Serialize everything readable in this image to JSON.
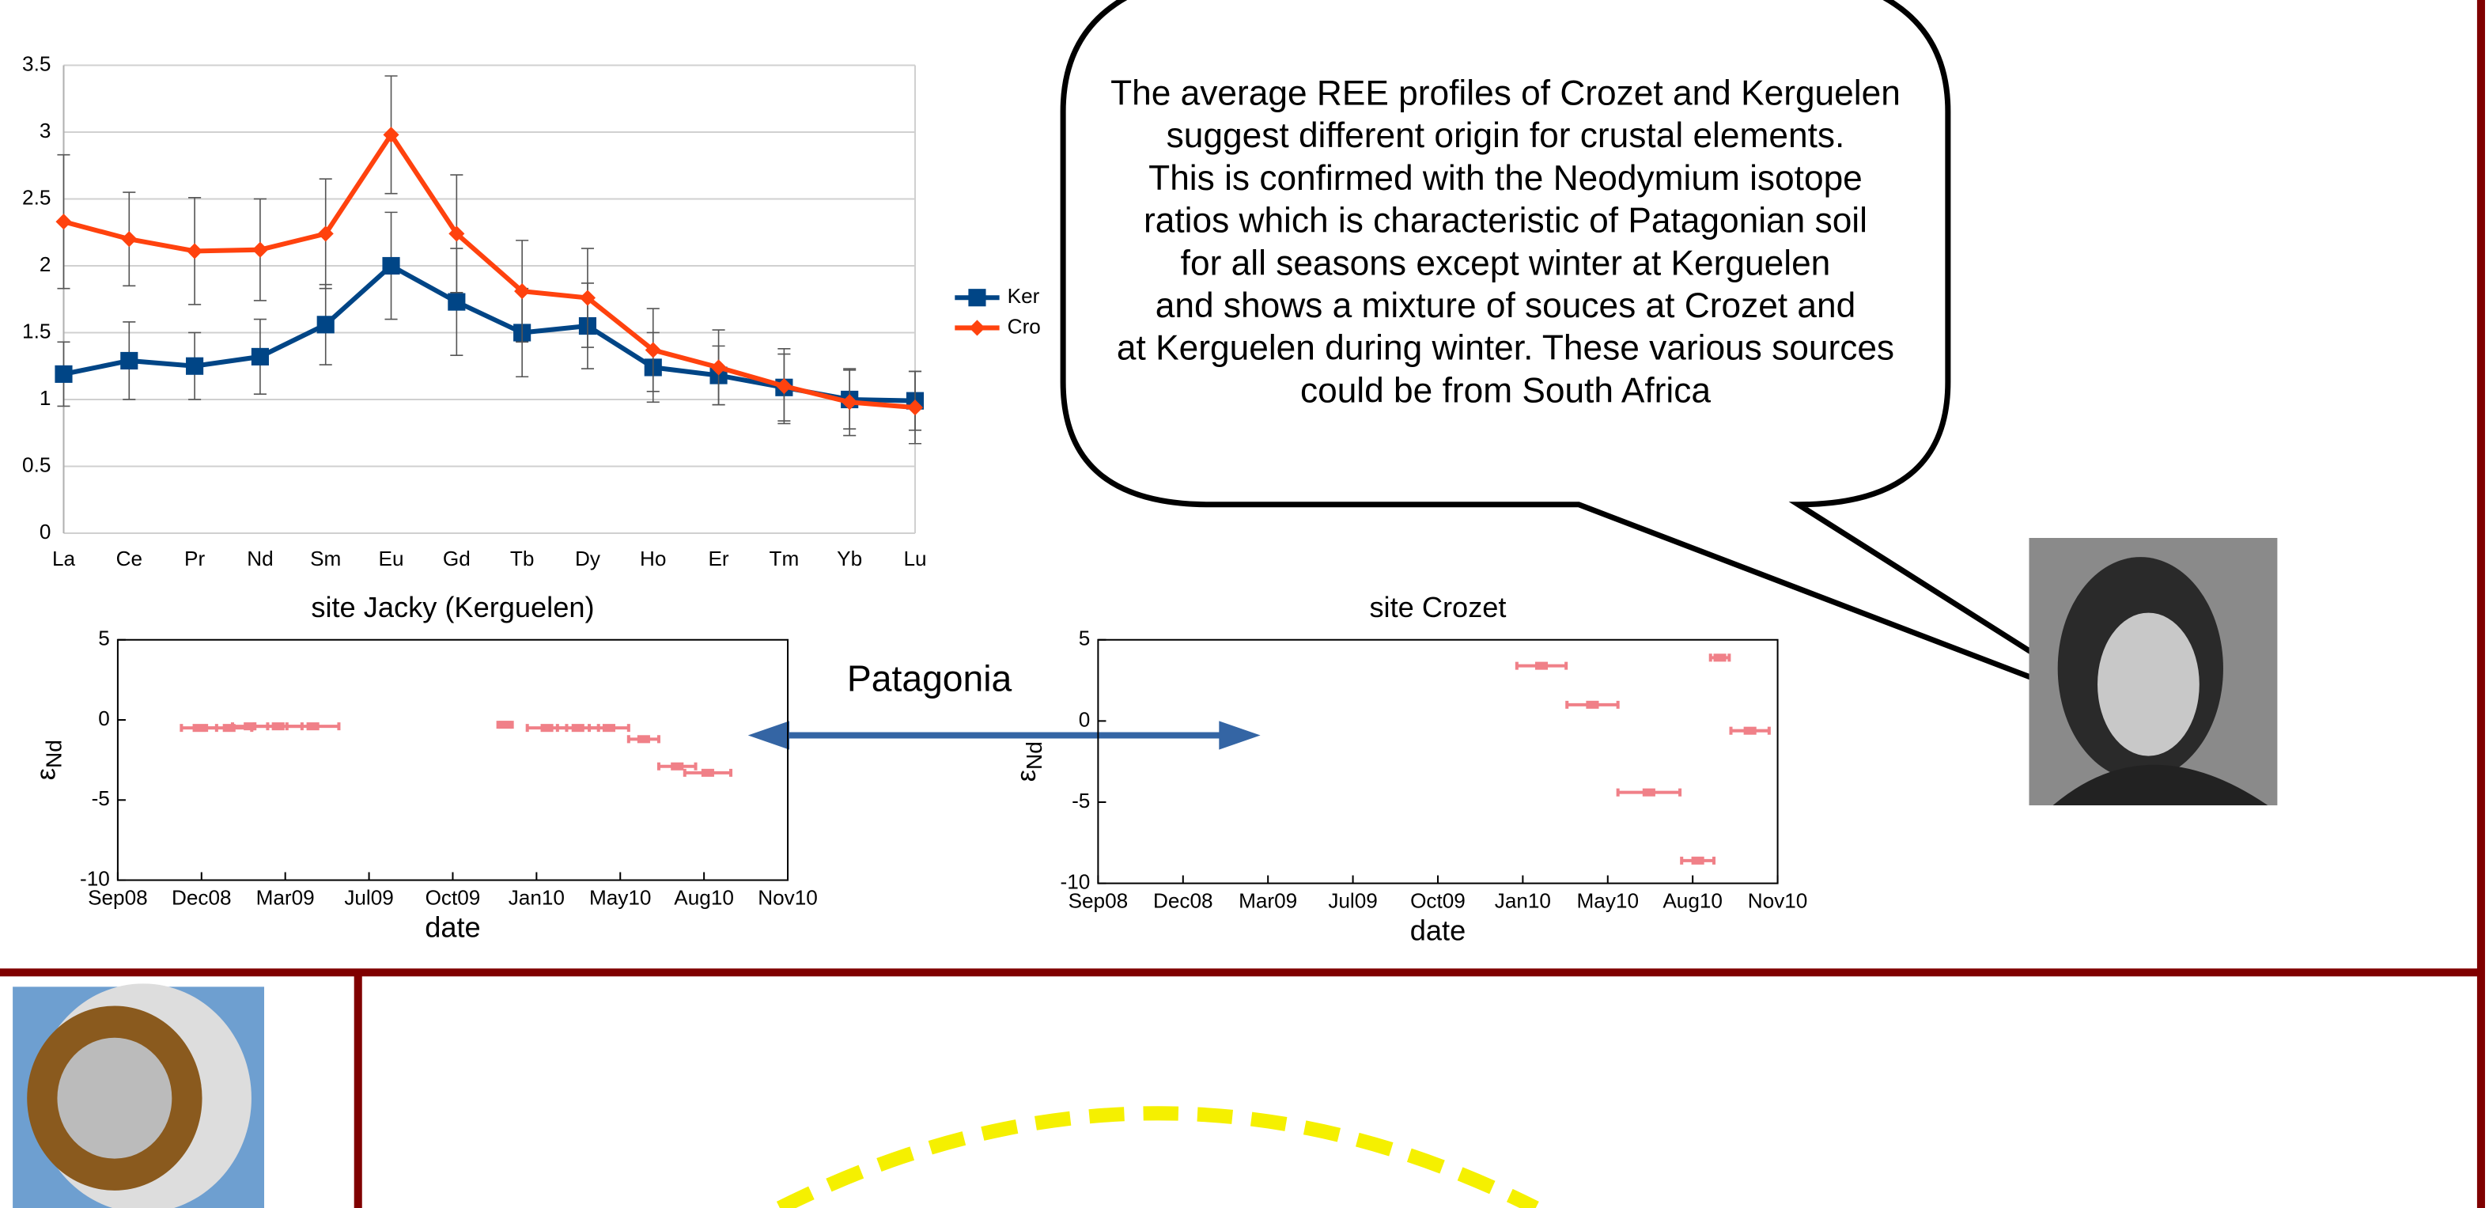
{
  "callout": {
    "lines": [
      "The average REE profiles of Crozet  and Kerguelen",
      "suggest different origin for crustal elements.",
      "This is confirmed with the Neodymium isotope",
      "ratios which is characteristic of Patagonian soil",
      "for all seasons except winter at Kerguelen",
      "and shows a mixture of souces at Crozet and",
      "at Kerguelen during winter. These various sources",
      "could be from South Africa"
    ]
  },
  "arrow_label": "Patagonia",
  "chart_data": [
    {
      "type": "line",
      "categories": [
        "La",
        "Ce",
        "Pr",
        "Nd",
        "Sm",
        "Eu",
        "Gd",
        "Tb",
        "Dy",
        "Ho",
        "Er",
        "Tm",
        "Yb",
        "Lu"
      ],
      "ylim": [
        0,
        3.5
      ],
      "yticks": [
        0,
        0.5,
        1,
        1.5,
        2,
        2.5,
        3,
        3.5
      ],
      "grid": true,
      "series": [
        {
          "name": "Ker",
          "color": "#004586",
          "marker": "square",
          "values": [
            1.19,
            1.29,
            1.25,
            1.32,
            1.56,
            2.0,
            1.73,
            1.5,
            1.55,
            1.24,
            1.18,
            1.09,
            1.0,
            0.99
          ],
          "errors": [
            0.24,
            0.29,
            0.25,
            0.28,
            0.3,
            0.4,
            0.4,
            0.33,
            0.32,
            0.26,
            0.22,
            0.25,
            0.22,
            0.22
          ]
        },
        {
          "name": "Cro",
          "color": "#ff420e",
          "marker": "diamond",
          "values": [
            2.33,
            2.2,
            2.11,
            2.12,
            2.24,
            2.98,
            2.24,
            1.81,
            1.76,
            1.37,
            1.24,
            1.1,
            0.98,
            0.94
          ],
          "errors": [
            0.5,
            0.35,
            0.4,
            0.38,
            0.41,
            0.44,
            0.44,
            0.38,
            0.37,
            0.31,
            0.28,
            0.28,
            0.25,
            0.27
          ]
        }
      ]
    },
    {
      "type": "interval",
      "title": "site Jacky (Kerguelen)",
      "x_label": "date",
      "y_label": "ε",
      "y_label_sub": "Nd",
      "xlim": [
        0,
        8
      ],
      "xticks": [
        {
          "value": 0,
          "label": "Sep08"
        },
        {
          "value": 1,
          "label": "Dec08"
        },
        {
          "value": 2,
          "label": "Mar09"
        },
        {
          "value": 3,
          "label": "Jul09"
        },
        {
          "value": 4,
          "label": "Oct09"
        },
        {
          "value": 5,
          "label": "Jan10"
        },
        {
          "value": 6,
          "label": "May10"
        },
        {
          "value": 7,
          "label": "Aug10"
        },
        {
          "value": 8,
          "label": "Nov10"
        }
      ],
      "ylim": [
        -10,
        5
      ],
      "yticks": [
        -10,
        -5,
        0,
        5
      ],
      "color": "#f08088",
      "x_start": [
        0.76,
        1.06,
        1.37,
        1.63,
        2.02,
        4.54,
        4.89,
        5.25,
        5.63,
        6.1,
        6.46,
        6.77
      ],
      "x_end": [
        1.18,
        1.6,
        1.79,
        2.2,
        2.64,
        4.71,
        5.36,
        5.74,
        6.1,
        6.46,
        6.9,
        7.32
      ],
      "values": [
        -0.5,
        -0.5,
        -0.4,
        -0.4,
        -0.4,
        -0.3,
        -0.5,
        -0.5,
        -0.5,
        -1.2,
        -2.9,
        -3.3
      ]
    },
    {
      "type": "interval",
      "title": "site Crozet",
      "x_label": "date",
      "y_label": "ε",
      "y_label_sub": "Nd",
      "xlim": [
        0,
        8
      ],
      "xticks": [
        {
          "value": 0,
          "label": "Sep08"
        },
        {
          "value": 1,
          "label": "Dec08"
        },
        {
          "value": 2,
          "label": "Mar09"
        },
        {
          "value": 3,
          "label": "Jul09"
        },
        {
          "value": 4,
          "label": "Oct09"
        },
        {
          "value": 5,
          "label": "Jan10"
        },
        {
          "value": 6,
          "label": "May10"
        },
        {
          "value": 7,
          "label": "Aug10"
        },
        {
          "value": 8,
          "label": "Nov10"
        }
      ],
      "ylim": [
        -10,
        5
      ],
      "yticks": [
        -10,
        -5,
        0,
        5
      ],
      "color": "#f08088",
      "x_start": [
        4.93,
        5.52,
        6.12,
        6.87,
        7.21,
        7.45
      ],
      "x_end": [
        5.51,
        6.12,
        6.85,
        7.25,
        7.43,
        7.9
      ],
      "values": [
        3.4,
        1.0,
        -4.4,
        -8.6,
        3.9,
        -0.6
      ]
    }
  ]
}
